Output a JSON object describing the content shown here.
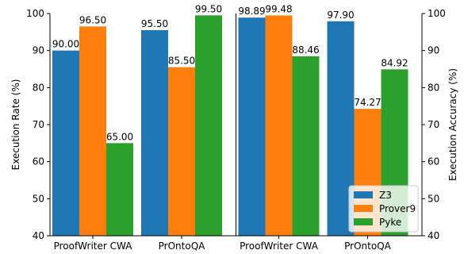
{
  "chart_data": {
    "type": "bar",
    "panels": [
      {
        "categories": [
          "ProofWriter CWA",
          "PrOntoQA"
        ],
        "series": [
          {
            "name": "Z3",
            "values": [
              90.0,
              95.5
            ],
            "labels": [
              "90.00",
              "95.50"
            ]
          },
          {
            "name": "Prover9",
            "values": [
              96.5,
              85.5
            ],
            "labels": [
              "96.50",
              "85.50"
            ]
          },
          {
            "name": "Pyke",
            "values": [
              65.0,
              99.5
            ],
            "labels": [
              "65.00",
              "99.50"
            ]
          }
        ],
        "ylabel": "Execution Rate (%)",
        "ylim": [
          40,
          100
        ],
        "yticks": [
          "40",
          "50",
          "60",
          "70",
          "80",
          "90",
          "100"
        ],
        "yaxis_side": "left"
      },
      {
        "categories": [
          "ProofWriter CWA",
          "PrOntoQA"
        ],
        "series": [
          {
            "name": "Z3",
            "values": [
              98.89,
              97.9
            ],
            "labels": [
              "98.89",
              "97.90"
            ]
          },
          {
            "name": "Prover9",
            "values": [
              99.48,
              74.27
            ],
            "labels": [
              "99.48",
              "74.27"
            ]
          },
          {
            "name": "Pyke",
            "values": [
              88.46,
              84.92
            ],
            "labels": [
              "88.46",
              "84.92"
            ]
          }
        ],
        "ylabel": "Execution Accuracy (%)",
        "ylim": [
          40,
          100
        ],
        "yticks": [
          "40",
          "50",
          "60",
          "70",
          "80",
          "90",
          "100"
        ],
        "yaxis_side": "right"
      }
    ],
    "legend": {
      "entries": [
        "Z3",
        "Prover9",
        "Pyke"
      ],
      "placement": "lower-right"
    },
    "colors": {
      "Z3": "#1f77b4",
      "Prover9": "#ff7f0e",
      "Pyke": "#2ca02c"
    },
    "grid": false
  }
}
